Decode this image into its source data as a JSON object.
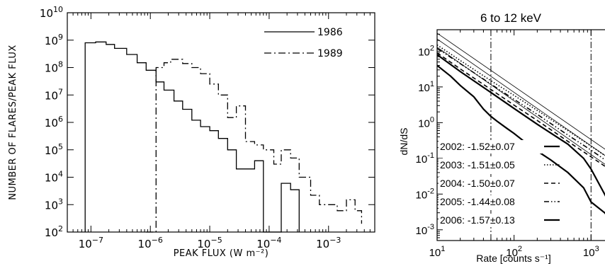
{
  "chart_data": [
    {
      "type": "line",
      "xscale": "log",
      "yscale": "log",
      "xlim": [
        4e-08,
        0.006
      ],
      "ylim": [
        100,
        10000000000.0
      ],
      "xlabel": "PEAK FLUX (W m⁻²)",
      "ylabel": "NUMBER OF FLARES/PEAK FLUX",
      "grid": false,
      "legend_position": "top-right",
      "x_ticks": [
        {
          "value": 1e-07,
          "base": "10",
          "exp": "−7"
        },
        {
          "value": 1e-06,
          "base": "10",
          "exp": "−6"
        },
        {
          "value": 1e-05,
          "base": "10",
          "exp": "−5"
        },
        {
          "value": 0.0001,
          "base": "10",
          "exp": "−4"
        },
        {
          "value": 0.001,
          "base": "10",
          "exp": "−3"
        }
      ],
      "y_ticks": [
        {
          "value": 100.0,
          "base": "10",
          "exp": "2"
        },
        {
          "value": 1000.0,
          "base": "10",
          "exp": "3"
        },
        {
          "value": 10000.0,
          "base": "10",
          "exp": "4"
        },
        {
          "value": 100000.0,
          "base": "10",
          "exp": "5"
        },
        {
          "value": 1000000.0,
          "base": "10",
          "exp": "6"
        },
        {
          "value": 10000000.0,
          "base": "10",
          "exp": "7"
        },
        {
          "value": 100000000.0,
          "base": "10",
          "exp": "8"
        },
        {
          "value": 1000000000.0,
          "base": "10",
          "exp": "9"
        },
        {
          "value": 10000000000.0,
          "base": "10",
          "exp": "10"
        }
      ],
      "series": [
        {
          "name": "1986",
          "style": "solid",
          "step": true,
          "x": [
            8e-08,
            1.2e-07,
            1.8e-07,
            2.5e-07,
            4e-07,
            6e-07,
            8.5e-07,
            1.25e-06,
            1.7e-06,
            2.5e-06,
            3.5e-06,
            5e-06,
            7e-06,
            1e-05,
            1.4e-05,
            2e-05,
            2.8e-05,
            4e-05,
            5.7e-05,
            8e-05,
            0.00012,
            0.00016,
            0.00023,
            0.00032
          ],
          "y": [
            800000000.0,
            860000000.0,
            700000000.0,
            500000000.0,
            300000000.0,
            150000000.0,
            80000000.0,
            30000000.0,
            15000000.0,
            6000000.0,
            3000000.0,
            1200000.0,
            700000.0,
            500000.0,
            260000.0,
            100000.0,
            20000.0,
            20000.0,
            40000.0,
            100,
            100,
            6000.0,
            3500.0,
            100
          ]
        },
        {
          "name": "1989",
          "style": "dash-dot",
          "step": true,
          "x": [
            8.5e-07,
            1.25e-06,
            1.7e-06,
            2.2e-06,
            3.5e-06,
            5e-06,
            7e-06,
            1e-05,
            1.4e-05,
            2e-05,
            2.8e-05,
            4e-05,
            5.7e-05,
            8e-05,
            0.00012,
            0.00016,
            0.00023,
            0.00032,
            0.0005,
            0.0007,
            0.001,
            0.0014,
            0.002,
            0.0028,
            0.0036
          ],
          "y": [
            100,
            100000000.0,
            150000000.0,
            200000000.0,
            140000000.0,
            100000000.0,
            60000000.0,
            25000000.0,
            10000000.0,
            1500000.0,
            4000000.0,
            200000.0,
            150000.0,
            100000.0,
            30000.0,
            100000.0,
            50000.0,
            10000.0,
            2200.0,
            1000.0,
            1000.0,
            600,
            1500.0,
            600,
            200
          ]
        }
      ]
    },
    {
      "type": "line",
      "title": "6 to 12 keV",
      "xscale": "log",
      "yscale": "log",
      "xlim": [
        10,
        2000
      ],
      "ylim": [
        0.0005,
        400
      ],
      "xlabel": "Rate [counts s⁻¹]",
      "ylabel": "dN/dS",
      "grid": false,
      "legend_position": "bottom-left",
      "vlines": [
        50,
        1000
      ],
      "x_ticks": [
        {
          "value": 10,
          "base": "10",
          "exp": "1"
        },
        {
          "value": 100,
          "base": "10",
          "exp": "2"
        },
        {
          "value": 1000,
          "base": "10",
          "exp": "3"
        }
      ],
      "y_ticks": [
        {
          "value": 0.001,
          "base": "10",
          "exp": "-3"
        },
        {
          "value": 0.01,
          "base": "10",
          "exp": "-2"
        },
        {
          "value": 0.1,
          "base": "10",
          "exp": "-1"
        },
        {
          "value": 1,
          "base": "10",
          "exp": "0"
        },
        {
          "value": 10,
          "base": "10",
          "exp": "1"
        },
        {
          "value": 100,
          "base": "10",
          "exp": "2"
        }
      ],
      "series": [
        {
          "name": "2002: -1.52±0.07",
          "style": "solid-thick",
          "x": [
            10,
            15,
            20,
            30,
            40,
            50,
            60,
            80,
            100,
            150,
            200,
            300,
            500,
            800,
            1000,
            1500,
            2000
          ],
          "y": [
            40,
            20,
            11,
            5.3,
            2.4,
            1.5,
            1.1,
            0.7,
            0.5,
            0.25,
            0.16,
            0.09,
            0.04,
            0.015,
            0.006,
            0.003,
            0.0015
          ]
        },
        {
          "name": "2003: -1.51±0.05",
          "style": "dotted",
          "x": [
            10,
            20,
            50,
            100,
            200,
            500,
            1000,
            2000
          ],
          "y": [
            150,
            55,
            15,
            5.8,
            2.2,
            0.6,
            0.22,
            0.08
          ]
        },
        {
          "name": "2004: -1.50±0.07",
          "style": "dashed",
          "x": [
            10,
            20,
            50,
            100,
            200,
            500,
            1000,
            2000
          ],
          "y": [
            90,
            32,
            8.5,
            3.1,
            1.15,
            0.3,
            0.11,
            0.04
          ]
        },
        {
          "name": "2005: -1.44±0.08",
          "style": "dash-dot-dot",
          "x": [
            10,
            20,
            50,
            100,
            200,
            500,
            1000,
            2000
          ],
          "y": [
            120,
            45,
            12,
            4.5,
            1.7,
            0.45,
            0.17,
            0.06
          ]
        },
        {
          "name": "2006: -1.57±0.13",
          "style": "solid-thick",
          "x": [
            10,
            20,
            50,
            100,
            200,
            500,
            800,
            1000,
            1500,
            2000
          ],
          "y": [
            80,
            27,
            7,
            2.5,
            0.9,
            0.25,
            0.1,
            0.05,
            0.01,
            0.003
          ]
        }
      ],
      "fit_lines": [
        {
          "x": [
            10,
            2000
          ],
          "y": [
            320,
            0.12
          ]
        },
        {
          "x": [
            10,
            2000
          ],
          "y": [
            220,
            0.08
          ]
        },
        {
          "x": [
            10,
            2000
          ],
          "y": [
            130,
            0.045
          ]
        }
      ]
    }
  ]
}
